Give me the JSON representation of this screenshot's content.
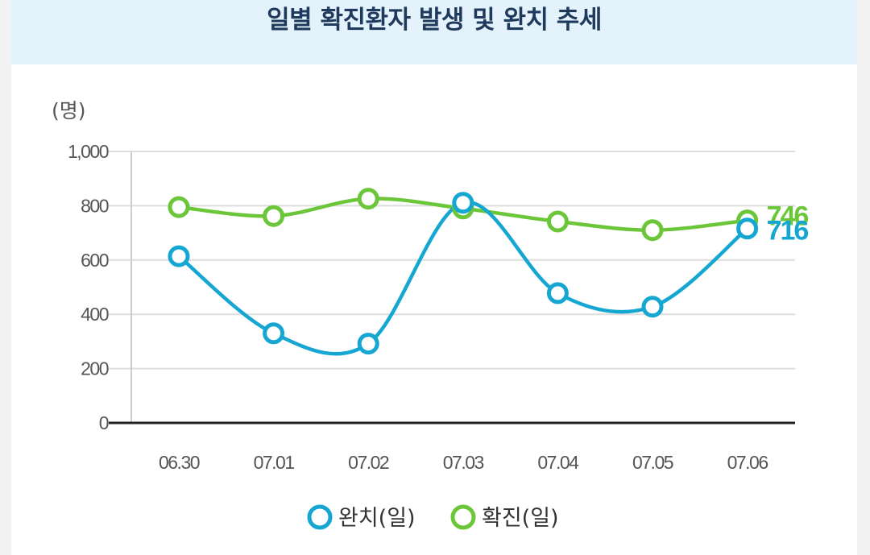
{
  "chart_data": {
    "type": "line",
    "title": "일별 확진환자 발생 및 완치 추세",
    "ylabel": "(명)",
    "xlabel": "",
    "ylim": [
      0,
      1000
    ],
    "yticks": [
      0,
      200,
      400,
      600,
      800,
      1000
    ],
    "ytick_labels": [
      "0",
      "200",
      "400",
      "600",
      "800",
      "1,000"
    ],
    "categories": [
      "06.30",
      "07.01",
      "07.02",
      "07.03",
      "07.04",
      "07.05",
      "07.06"
    ],
    "series": [
      {
        "name": "완치(일)",
        "color": "#15a6d2",
        "values": [
          614,
          330,
          292,
          811,
          478,
          428,
          716
        ],
        "end_label": "716"
      },
      {
        "name": "확진(일)",
        "color": "#6cc63a",
        "values": [
          795,
          762,
          826,
          790,
          742,
          710,
          746
        ],
        "end_label": "746"
      }
    ],
    "grid": true,
    "legend_position": "bottom"
  }
}
